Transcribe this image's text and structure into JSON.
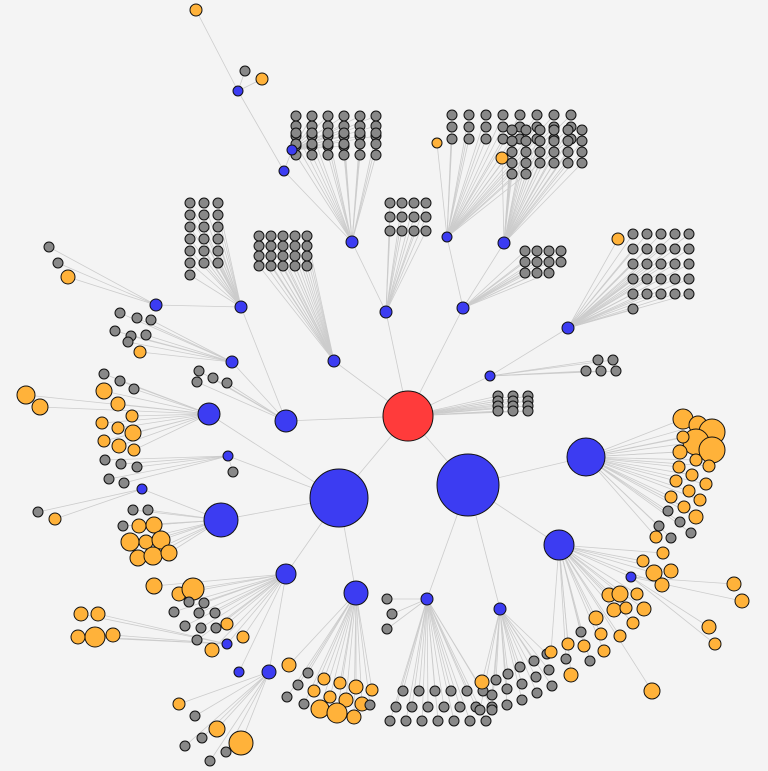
{
  "graph": {
    "node_colors": {
      "root": "#ff3b3b",
      "hub": "#3c3cf2",
      "leaf": "#888888",
      "highlight": "#ffb23a"
    },
    "edge_color": "#cccccc",
    "legend": ""
  }
}
